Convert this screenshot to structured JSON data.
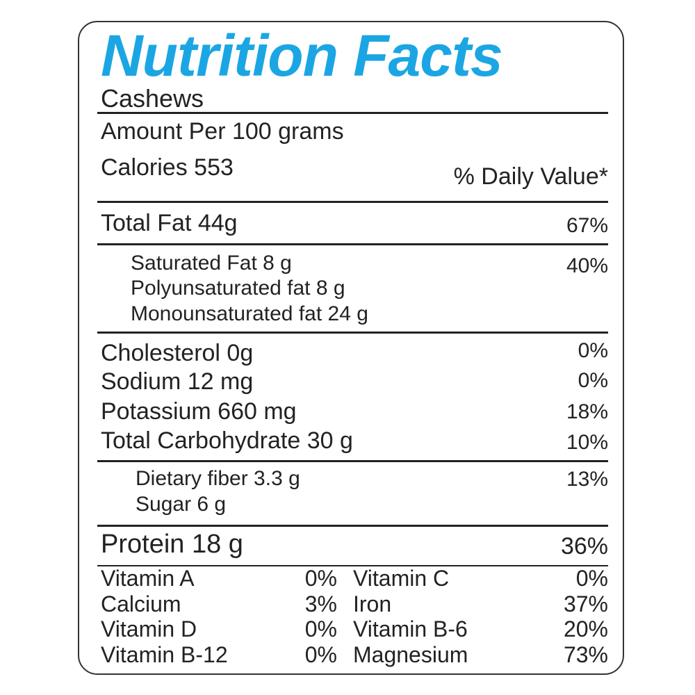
{
  "title": "Nutrition Facts",
  "product": "Cashews",
  "serving": "Amount Per 100 grams",
  "calories": "Calories 553",
  "daily_value_header": "% Daily Value*",
  "total_fat": {
    "label": "Total Fat 44g",
    "dv": "67%"
  },
  "fats": [
    {
      "label": "Saturated Fat 8 g",
      "dv": "40%"
    },
    {
      "label": "Polyunsaturated fat 8 g"
    },
    {
      "label": "Monounsaturated fat 24 g"
    }
  ],
  "nutrients": [
    {
      "label": "Cholesterol 0g",
      "dv": "0%"
    },
    {
      "label": "Sodium 12 mg",
      "dv": "0%"
    },
    {
      "label": "Potassium 660 mg",
      "dv": "18%"
    },
    {
      "label": "Total Carbohydrate 30 g",
      "dv": "10%"
    }
  ],
  "carbs": [
    {
      "label": "Dietary fiber 3.3 g",
      "dv": "13%"
    },
    {
      "label": "Sugar 6 g"
    }
  ],
  "protein": {
    "label": "Protein 18 g",
    "dv": "36%"
  },
  "vitamins": [
    [
      {
        "name": "Vitamin A",
        "dv": "0%"
      },
      {
        "name": "Vitamin C",
        "dv": "0%"
      }
    ],
    [
      {
        "name": "Calcium",
        "dv": "3%"
      },
      {
        "name": "Iron",
        "dv": "37%"
      }
    ],
    [
      {
        "name": "Vitamin D",
        "dv": "0%"
      },
      {
        "name": "Vitamin B-6",
        "dv": "20%"
      }
    ],
    [
      {
        "name": "Vitamin B-12",
        "dv": "0%"
      },
      {
        "name": "Magnesium",
        "dv": "73%"
      }
    ]
  ]
}
